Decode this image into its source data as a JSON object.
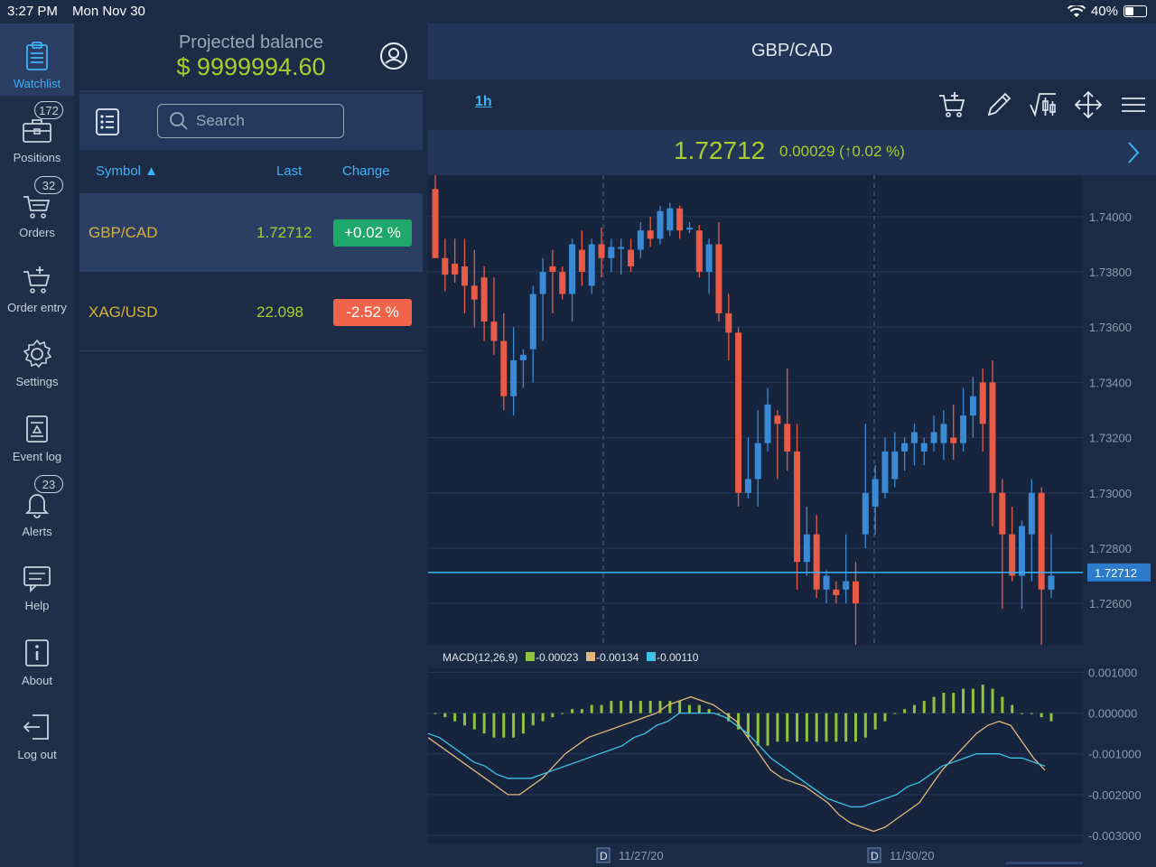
{
  "status": {
    "time": "3:27 PM",
    "date": "Mon Nov 30",
    "battery": "40%"
  },
  "nav": [
    {
      "label": "Watchlist",
      "icon": "clipboard-icon",
      "active": true
    },
    {
      "label": "Positions",
      "icon": "briefcase-icon",
      "badge": "172"
    },
    {
      "label": "Orders",
      "icon": "cart-icon",
      "badge": "32"
    },
    {
      "label": "Order entry",
      "icon": "cart-add-icon"
    },
    {
      "label": "Settings",
      "icon": "gear-icon"
    },
    {
      "label": "Event log",
      "icon": "document-icon"
    },
    {
      "label": "Alerts",
      "icon": "bell-icon",
      "badge": "23"
    },
    {
      "label": "Help",
      "icon": "chat-icon"
    },
    {
      "label": "About",
      "icon": "info-icon"
    },
    {
      "label": "Log out",
      "icon": "logout-icon"
    }
  ],
  "watchlist": {
    "projected_label": "Projected balance",
    "projected_value": "$ 9999994.60",
    "search_placeholder": "Search",
    "columns": {
      "symbol": "Symbol ▲",
      "last": "Last",
      "change": "Change"
    },
    "rows": [
      {
        "symbol": "GBP/CAD",
        "last": "1.72712",
        "change": "+0.02 %",
        "color": "#1ea86a"
      },
      {
        "symbol": "XAG/USD",
        "last": "22.098",
        "change": "-2.52 %",
        "color": "#f2634b"
      }
    ]
  },
  "chart": {
    "title": "GBP/CAD",
    "timeframe": "1h",
    "price": "1.72712",
    "change": "0.00029 (↑0.02 %)",
    "macd_label": "MACD(12,26,9)",
    "macd_values": [
      "-0.00023",
      "-0.00134",
      "-0.00110"
    ],
    "macd_colors": [
      "#8fc43c",
      "#e3b77a",
      "#3fc2e8"
    ],
    "date_labels": [
      "11/27/20",
      "11/30/20"
    ]
  },
  "chart_data": {
    "type": "candlestick",
    "price_axis": {
      "ticks": [
        "1.74000",
        "1.73800",
        "1.73600",
        "1.73400",
        "1.73200",
        "1.73000",
        "1.72800",
        "1.72600"
      ],
      "min": 1.7245,
      "max": 1.7415
    },
    "current_price_label": "1.72712",
    "candles": [
      [
        1.741,
        1.7415,
        1.7385,
        1.7385
      ],
      [
        1.7385,
        1.7392,
        1.7373,
        1.7379
      ],
      [
        1.7383,
        1.7392,
        1.7376,
        1.7379
      ],
      [
        1.7382,
        1.7392,
        1.7365,
        1.7375
      ],
      [
        1.7375,
        1.7388,
        1.736,
        1.737
      ],
      [
        1.7378,
        1.7382,
        1.7355,
        1.7362
      ],
      [
        1.7362,
        1.7378,
        1.735,
        1.7355
      ],
      [
        1.7355,
        1.7365,
        1.733,
        1.7335
      ],
      [
        1.7335,
        1.736,
        1.7328,
        1.7348
      ],
      [
        1.7348,
        1.7352,
        1.7338,
        1.735
      ],
      [
        1.7352,
        1.7375,
        1.734,
        1.7372
      ],
      [
        1.7372,
        1.7385,
        1.7355,
        1.738
      ],
      [
        1.7382,
        1.7388,
        1.7365,
        1.738
      ],
      [
        1.738,
        1.7382,
        1.737,
        1.7372
      ],
      [
        1.7372,
        1.7392,
        1.7362,
        1.739
      ],
      [
        1.7388,
        1.7395,
        1.7375,
        1.738
      ],
      [
        1.7375,
        1.7392,
        1.7372,
        1.739
      ],
      [
        1.739,
        1.7396,
        1.7378,
        1.7385
      ],
      [
        1.7385,
        1.7392,
        1.738,
        1.7389
      ],
      [
        1.7389,
        1.7392,
        1.7379,
        1.7389
      ],
      [
        1.7388,
        1.7392,
        1.738,
        1.7382
      ],
      [
        1.7388,
        1.7398,
        1.7385,
        1.7395
      ],
      [
        1.7395,
        1.74,
        1.7389,
        1.7392
      ],
      [
        1.7392,
        1.7404,
        1.739,
        1.7402
      ],
      [
        1.7395,
        1.7405,
        1.7393,
        1.7403
      ],
      [
        1.7403,
        1.7404,
        1.7392,
        1.7395
      ],
      [
        1.7396,
        1.7398,
        1.7394,
        1.7396
      ],
      [
        1.7395,
        1.7397,
        1.7378,
        1.738
      ],
      [
        1.738,
        1.7392,
        1.7372,
        1.739
      ],
      [
        1.739,
        1.7398,
        1.7362,
        1.7365
      ],
      [
        1.7365,
        1.7372,
        1.7348,
        1.7358
      ],
      [
        1.7358,
        1.736,
        1.7295,
        1.73
      ],
      [
        1.73,
        1.732,
        1.7298,
        1.7305
      ],
      [
        1.7305,
        1.733,
        1.7295,
        1.7318
      ],
      [
        1.7318,
        1.7338,
        1.7315,
        1.7332
      ],
      [
        1.7328,
        1.733,
        1.7305,
        1.7325
      ],
      [
        1.7325,
        1.7345,
        1.7308,
        1.7315
      ],
      [
        1.7315,
        1.7325,
        1.7265,
        1.7275
      ],
      [
        1.7275,
        1.7295,
        1.727,
        1.7285
      ],
      [
        1.7285,
        1.7292,
        1.7262,
        1.7265
      ],
      [
        1.7265,
        1.7272,
        1.726,
        1.727
      ],
      [
        1.7265,
        1.7268,
        1.726,
        1.7263
      ],
      [
        1.7265,
        1.7285,
        1.726,
        1.7268
      ],
      [
        1.7268,
        1.7275,
        1.7237,
        1.726
      ],
      [
        1.7285,
        1.7325,
        1.728,
        1.73
      ],
      [
        1.7295,
        1.731,
        1.7285,
        1.7305
      ],
      [
        1.73,
        1.732,
        1.7298,
        1.7315
      ],
      [
        1.7305,
        1.7322,
        1.7302,
        1.7315
      ],
      [
        1.7315,
        1.732,
        1.7308,
        1.7318
      ],
      [
        1.7318,
        1.7325,
        1.731,
        1.7322
      ],
      [
        1.7315,
        1.732,
        1.731,
        1.7318
      ],
      [
        1.7318,
        1.7328,
        1.7315,
        1.7322
      ],
      [
        1.7318,
        1.733,
        1.7312,
        1.7325
      ],
      [
        1.732,
        1.7332,
        1.7312,
        1.7318
      ],
      [
        1.7318,
        1.7338,
        1.7315,
        1.7328
      ],
      [
        1.7328,
        1.7342,
        1.732,
        1.7335
      ],
      [
        1.734,
        1.7345,
        1.7315,
        1.7325
      ],
      [
        1.734,
        1.7348,
        1.7288,
        1.73
      ],
      [
        1.73,
        1.7305,
        1.7258,
        1.7285
      ],
      [
        1.7285,
        1.7295,
        1.7268,
        1.727
      ],
      [
        1.727,
        1.729,
        1.7258,
        1.7288
      ],
      [
        1.7285,
        1.7305,
        1.7268,
        1.73
      ],
      [
        1.73,
        1.7302,
        1.7235,
        1.7265
      ],
      [
        1.7265,
        1.7285,
        1.7262,
        1.727
      ]
    ],
    "macd_axis": {
      "ticks": [
        "0.001000",
        "0.000000",
        "-0.001000",
        "-0.002000",
        "-0.003000"
      ],
      "min": -0.0032,
      "max": 0.0011
    }
  }
}
